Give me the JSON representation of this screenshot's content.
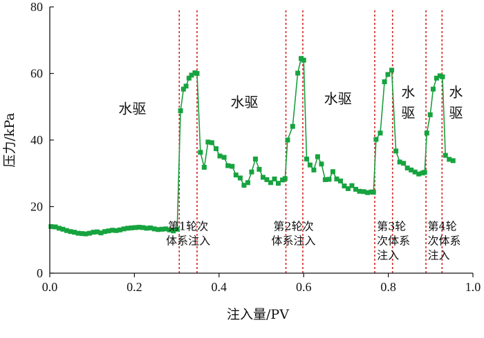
{
  "chart_data": {
    "type": "line",
    "xlabel": "注入量/PV",
    "ylabel": "压力/kPa",
    "xlim": [
      0.0,
      1.0
    ],
    "ylim": [
      0,
      80
    ],
    "xticks": [
      "0.0",
      "0.2",
      "0.4",
      "0.6",
      "0.8",
      "1.0"
    ],
    "yticks": [
      "0",
      "20",
      "40",
      "60",
      "80"
    ],
    "grid": false,
    "line_color": "#1a9e3c",
    "marker_color": "#17a33f",
    "divider_color": "#d22020",
    "dividers": [
      0.306,
      0.348,
      0.558,
      0.598,
      0.768,
      0.81,
      0.889,
      0.927
    ],
    "series": [
      {
        "x": [
          0.003,
          0.013,
          0.022,
          0.031,
          0.04,
          0.049,
          0.058,
          0.067,
          0.076,
          0.085,
          0.094,
          0.103,
          0.112,
          0.121,
          0.13,
          0.139,
          0.148,
          0.157,
          0.166,
          0.175,
          0.184,
          0.193,
          0.202,
          0.211,
          0.22,
          0.229,
          0.238,
          0.247,
          0.256,
          0.265,
          0.274,
          0.283,
          0.292,
          0.301,
          0.309,
          0.316,
          0.322,
          0.329,
          0.335,
          0.343,
          0.348,
          0.356,
          0.365,
          0.374,
          0.383,
          0.393,
          0.402,
          0.412,
          0.421,
          0.431,
          0.44,
          0.45,
          0.459,
          0.468,
          0.477,
          0.486,
          0.495,
          0.504,
          0.513,
          0.522,
          0.531,
          0.54,
          0.55,
          0.556,
          0.562,
          0.574,
          0.586,
          0.594,
          0.6,
          0.607,
          0.615,
          0.624,
          0.633,
          0.642,
          0.651,
          0.66,
          0.669,
          0.678,
          0.687,
          0.696,
          0.705,
          0.714,
          0.723,
          0.732,
          0.742,
          0.751,
          0.76,
          0.765,
          0.771,
          0.781,
          0.791,
          0.799,
          0.808,
          0.818,
          0.827,
          0.836,
          0.845,
          0.854,
          0.863,
          0.872,
          0.881,
          0.886,
          0.891,
          0.899,
          0.906,
          0.914,
          0.922,
          0.928,
          0.935,
          0.944,
          0.953
        ],
        "values": [
          14.0,
          13.9,
          13.5,
          13.2,
          12.8,
          12.5,
          12.3,
          12.0,
          11.9,
          11.8,
          12.0,
          12.3,
          12.4,
          12.1,
          12.5,
          12.7,
          12.9,
          12.8,
          13.0,
          13.3,
          13.5,
          13.6,
          13.7,
          13.8,
          13.7,
          13.5,
          13.6,
          13.3,
          13.1,
          13.2,
          13.3,
          13.0,
          12.7,
          13.2,
          48.8,
          55.3,
          56.2,
          58.6,
          59.5,
          60.2,
          60.0,
          36.3,
          31.8,
          39.4,
          39.2,
          37.4,
          35.2,
          34.8,
          32.3,
          32.1,
          29.5,
          28.6,
          26.4,
          27.2,
          30.4,
          34.3,
          31.2,
          28.8,
          28.1,
          27.2,
          28.3,
          27.0,
          28.0,
          28.4,
          40.0,
          44.1,
          60.1,
          64.5,
          64.0,
          34.3,
          32.5,
          31.0,
          35.0,
          32.8,
          28.1,
          28.2,
          30.5,
          28.3,
          27.7,
          26.2,
          25.4,
          26.3,
          25.2,
          24.6,
          24.5,
          24.2,
          24.4,
          24.3,
          40.2,
          42.1,
          57.5,
          59.7,
          61.0,
          36.7,
          33.4,
          33.0,
          31.6,
          31.0,
          30.4,
          29.8,
          30.1,
          30.3,
          42.1,
          47.6,
          55.3,
          58.6,
          59.3,
          59.0,
          35.4,
          34.2,
          33.8
        ]
      }
    ],
    "annotations": [
      {
        "lines": [
          "水驱"
        ],
        "x": 0.195,
        "y": 48,
        "size": "big",
        "anchor": "middle"
      },
      {
        "lines": [
          "水驱"
        ],
        "x": 0.46,
        "y": 50,
        "size": "big",
        "anchor": "middle"
      },
      {
        "lines": [
          "水驱"
        ],
        "x": 0.681,
        "y": 51,
        "size": "big",
        "anchor": "middle"
      },
      {
        "lines": [
          "水",
          "驱"
        ],
        "x": 0.847,
        "y": 53,
        "size": "big",
        "anchor": "middle"
      },
      {
        "lines": [
          "水",
          "驱"
        ],
        "x": 0.96,
        "y": 53,
        "size": "big",
        "anchor": "middle"
      },
      {
        "lines": [
          "第1轮次",
          "体系注入"
        ],
        "x": 0.327,
        "y": 13,
        "size": "small",
        "anchor": "middle"
      },
      {
        "lines": [
          "第2轮次",
          "体系注入"
        ],
        "x": 0.576,
        "y": 13,
        "size": "small",
        "anchor": "middle"
      },
      {
        "lines": [
          "第3轮",
          "次体系",
          "注入"
        ],
        "x": 0.773,
        "y": 13,
        "size": "small",
        "anchor": "start"
      },
      {
        "lines": [
          "第4轮",
          "次体系",
          "注入"
        ],
        "x": 0.893,
        "y": 13,
        "size": "small",
        "anchor": "start"
      }
    ]
  }
}
